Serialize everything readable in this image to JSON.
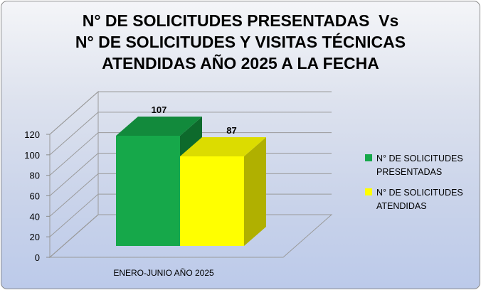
{
  "chart_data": {
    "type": "bar",
    "title_lines": [
      "N° DE SOLICITUDES PRESENTADAS  Vs",
      "N° DE SOLICITUDES Y VISITAS TÉCNICAS",
      "ATENDIDAS AÑO 2025 A LA FECHA"
    ],
    "categories": [
      "ENERO-JUNIO AÑO 2025"
    ],
    "series": [
      {
        "name": "N° DE SOLICITUDES PRESENTADAS",
        "legend_lines": [
          "N° DE SOLICITUDES",
          "PRESENTADAS"
        ],
        "values": [
          107
        ],
        "color": "#16a84a",
        "color_top": "#128a3c",
        "color_side": "#0d6a2c"
      },
      {
        "name": "N° DE SOLICITUDES ATENDIDAS",
        "legend_lines": [
          "N° DE SOLICITUDES",
          "ATENDIDAS"
        ],
        "values": [
          87
        ],
        "color": "#ffff00",
        "color_top": "#dcdc00",
        "color_side": "#b0b000"
      }
    ],
    "ylim": [
      0,
      120
    ],
    "yticks": [
      0,
      20,
      40,
      60,
      80,
      100,
      120
    ],
    "grid": true,
    "legend": "right",
    "projection": "3d"
  }
}
